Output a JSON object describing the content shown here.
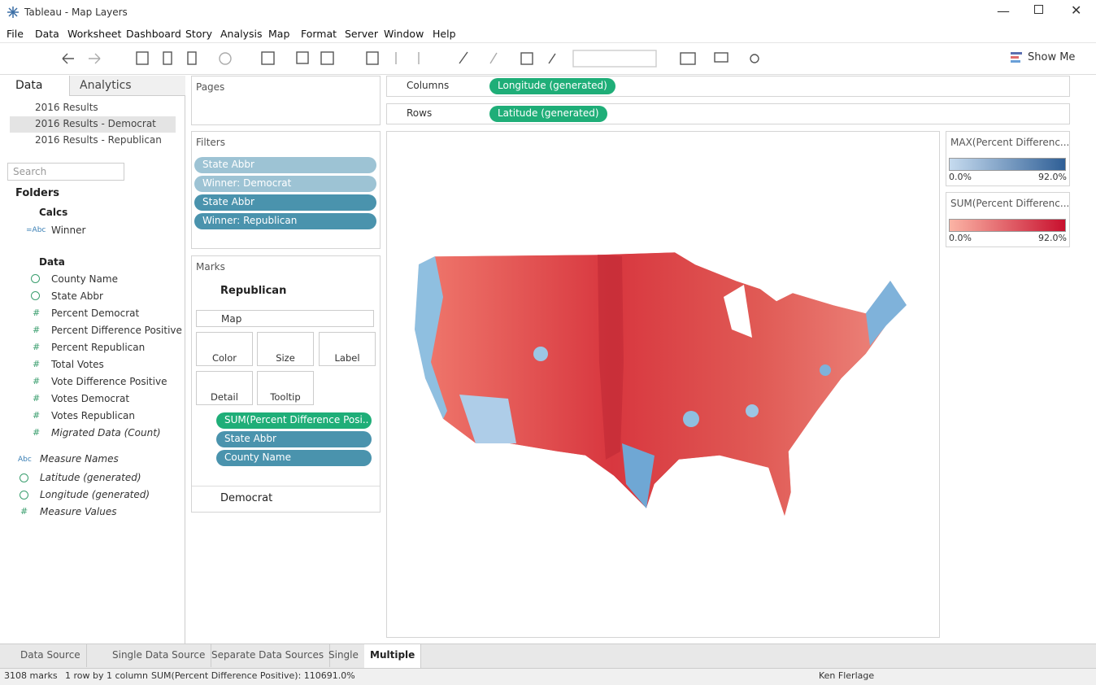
{
  "window": {
    "title": "Tableau - Map Layers"
  },
  "menu": [
    "File",
    "Data",
    "Worksheet",
    "Dashboard",
    "Story",
    "Analysis",
    "Map",
    "Format",
    "Server",
    "Window",
    "Help"
  ],
  "toolbar": {
    "show_me": "Show Me"
  },
  "data_pane": {
    "tabs": [
      "Data",
      "Analytics"
    ],
    "sources": [
      "2016 Results",
      "2016 Results - Democrat",
      "2016 Results - Republican"
    ],
    "search_placeholder": "Search",
    "folders_label": "Folders",
    "calcs": {
      "name": "Calcs",
      "fields": [
        {
          "icon": "=Abc",
          "name": "Winner"
        }
      ]
    },
    "data_folder": {
      "name": "Data",
      "dimensions": [
        "County Name",
        "State Abbr"
      ],
      "measures": [
        "Percent Democrat",
        "Percent Difference Positive",
        "Percent Republican",
        "Total Votes",
        "Vote Difference Positive",
        "Votes Democrat",
        "Votes Republican",
        "Migrated Data (Count)"
      ],
      "measure_icon": "#"
    },
    "extra_dimension": {
      "icon": "Abc",
      "name": "Measure Names"
    },
    "extra_measures": [
      "Latitude (generated)",
      "Longitude (generated)",
      "Measure Values"
    ]
  },
  "pages": {
    "title": "Pages"
  },
  "filters": {
    "title": "Filters",
    "pills": [
      "State Abbr",
      "Winner: Democrat",
      "State Abbr",
      "Winner: Republican"
    ]
  },
  "marks": {
    "title": "Marks",
    "layers": [
      "Republican",
      "Democrat"
    ],
    "mark_type": "Map",
    "buttons": [
      "Color",
      "Size",
      "Label",
      "Detail",
      "Tooltip"
    ],
    "pills": [
      "SUM(Percent Difference Posi..",
      "State Abbr",
      "County Name"
    ]
  },
  "shelves": {
    "columns": {
      "label": "Columns",
      "pill": "Longitude (generated)"
    },
    "rows": {
      "label": "Rows",
      "pill": "Latitude (generated)"
    }
  },
  "legends": [
    {
      "title": "MAX(Percent Differenc...",
      "min": "0.0%",
      "max": "92.0%"
    },
    {
      "title": "SUM(Percent Differenc...",
      "min": "0.0%",
      "max": "92.0%"
    }
  ],
  "sheet_tabs": [
    "Data Source",
    "Single Data Source",
    "Separate Data Sources",
    "Single",
    "Multiple"
  ],
  "status": {
    "marks": "3108 marks",
    "dims": "1 row by 1 column",
    "sum": "SUM(Percent Difference Positive): 110691.0%",
    "user": "Ken Flerlage"
  }
}
